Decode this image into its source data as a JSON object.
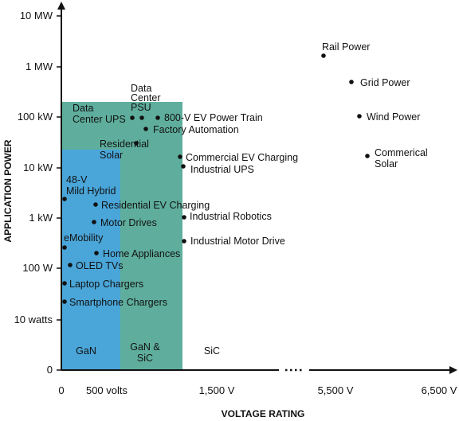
{
  "chart_data": {
    "type": "scatter",
    "xlabel": "VOLTAGE RATING",
    "ylabel": "APPLICATION POWER",
    "x_ticks": [
      "0",
      "500 volts",
      "1,500 V",
      "5,500 V",
      "6,500 V"
    ],
    "y_ticks": [
      "0",
      "10 watts",
      "100 W",
      "1 kW",
      "10 kW",
      "100 kW",
      "1 MW",
      "10 MW"
    ],
    "regions": [
      {
        "name": "GaN",
        "label": "GaN",
        "color": "#4aa6d9",
        "x_max_label": "500 volts",
        "y_max_label": "10 kW"
      },
      {
        "name": "GaN & SiC",
        "label_lines": [
          "GaN &",
          "SiC"
        ],
        "color": "#5fae9d",
        "y_max_label": "100 kW"
      },
      {
        "name": "SiC",
        "label": "SiC",
        "color": "#ffffff"
      }
    ],
    "points": [
      {
        "lines": [
          "Rail Power"
        ]
      },
      {
        "lines": [
          "Grid Power"
        ]
      },
      {
        "lines": [
          "Wind Power"
        ]
      },
      {
        "lines": [
          "Commerical",
          "Solar"
        ]
      },
      {
        "lines": [
          "Data",
          "Center UPS"
        ]
      },
      {
        "lines": [
          "Data",
          "Center",
          "PSU"
        ]
      },
      {
        "lines": [
          "800-V EV Power Train"
        ]
      },
      {
        "lines": [
          "Factory Automation"
        ]
      },
      {
        "lines": [
          "Residential",
          "Solar"
        ]
      },
      {
        "lines": [
          "Commercial EV Charging"
        ]
      },
      {
        "lines": [
          "Industrial UPS"
        ]
      },
      {
        "lines": [
          "48-V",
          "Mild Hybrid"
        ]
      },
      {
        "lines": [
          "Residential EV Charging"
        ]
      },
      {
        "lines": [
          "Industrial Robotics"
        ]
      },
      {
        "lines": [
          "Motor Drives"
        ]
      },
      {
        "lines": [
          "Industrial Motor Drive"
        ]
      },
      {
        "lines": [
          "eMobility"
        ]
      },
      {
        "lines": [
          "Home Appliances"
        ]
      },
      {
        "lines": [
          "OLED TVs"
        ]
      },
      {
        "lines": [
          "Laptop Chargers"
        ]
      },
      {
        "lines": [
          "Smartphone Chargers"
        ]
      }
    ]
  }
}
